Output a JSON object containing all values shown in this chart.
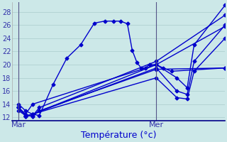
{
  "background_color": "#cce8e8",
  "grid_color": "#aacccc",
  "line_color": "#0000cc",
  "marker": "D",
  "markersize": 2.5,
  "linewidth": 1.0,
  "ylim": [
    11.5,
    29.5
  ],
  "yticks": [
    12,
    14,
    16,
    18,
    20,
    22,
    24,
    26,
    28
  ],
  "xlabel": "Température (°c)",
  "xlabel_color": "#0000cc",
  "xlabel_fontsize": 9,
  "tick_fontsize": 7,
  "tick_color": "#3333aa",
  "mar_x": 10,
  "mer_x": 210,
  "xlim": [
    0,
    310
  ],
  "lines": [
    {
      "x": [
        10,
        20,
        30,
        40,
        60,
        80,
        100,
        120,
        135,
        148,
        158,
        168,
        175,
        182,
        188,
        194,
        200,
        210,
        220,
        232,
        310
      ],
      "y": [
        14,
        13,
        12.5,
        12.3,
        17,
        21,
        23,
        26.3,
        26.6,
        26.6,
        26.6,
        26.2,
        22.2,
        20.3,
        19.5,
        19.5,
        20.0,
        20.0,
        19.5,
        19.0,
        19.5
      ]
    },
    {
      "x": [
        10,
        20,
        30,
        40,
        210,
        310
      ],
      "y": [
        13.5,
        12.3,
        12.2,
        13.0,
        19.3,
        19.5
      ]
    },
    {
      "x": [
        10,
        20,
        30,
        210,
        310
      ],
      "y": [
        13.5,
        12.5,
        14.0,
        20.0,
        25.8
      ]
    },
    {
      "x": [
        10,
        20,
        30,
        40,
        210,
        310
      ],
      "y": [
        13.0,
        12.3,
        12.2,
        13.5,
        20.5,
        27.5
      ]
    },
    {
      "x": [
        10,
        20,
        30,
        210,
        240,
        255,
        265,
        310
      ],
      "y": [
        13.5,
        12.2,
        12.5,
        18.0,
        15.0,
        14.8,
        19.0,
        24.0
      ]
    },
    {
      "x": [
        10,
        20,
        30,
        210,
        240,
        255,
        265,
        310
      ],
      "y": [
        13.5,
        12.2,
        12.5,
        19.5,
        16.0,
        15.5,
        20.5,
        26.0
      ]
    },
    {
      "x": [
        10,
        20,
        30,
        210,
        240,
        255,
        265,
        310
      ],
      "y": [
        13.5,
        12.2,
        12.5,
        20.0,
        18.0,
        16.5,
        23.0,
        29.0
      ]
    }
  ],
  "axvline_color": "#555588",
  "axvline_lw": 0.8,
  "spine_color": "#000088",
  "spine_lw": 1.2
}
